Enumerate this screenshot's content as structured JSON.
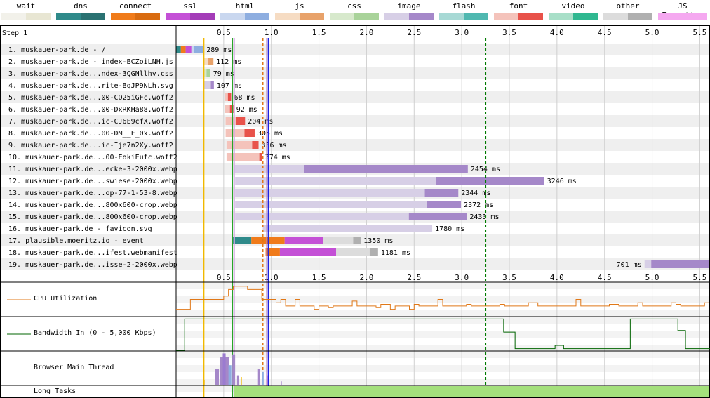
{
  "legend": [
    {
      "label": "wait",
      "c1": "#f2f1ea",
      "c2": "#e8e6d3"
    },
    {
      "label": "dns",
      "c1": "#2f8a8a",
      "c2": "#2a7272"
    },
    {
      "label": "connect",
      "c1": "#f07b1a",
      "c2": "#d96b10"
    },
    {
      "label": "ssl",
      "c1": "#c450d6",
      "c2": "#a43cb8"
    },
    {
      "label": "html",
      "c1": "#c9d7ef",
      "c2": "#8eaee0"
    },
    {
      "label": "js",
      "c1": "#f6dcc3",
      "c2": "#e8a26a"
    },
    {
      "label": "css",
      "c1": "#d7e9cc",
      "c2": "#a9d39a"
    },
    {
      "label": "image",
      "c1": "#d7cfe6",
      "c2": "#a588c9"
    },
    {
      "label": "flash",
      "c1": "#a7d9d5",
      "c2": "#4fb8b0"
    },
    {
      "label": "font",
      "c1": "#f4c3bb",
      "c2": "#e8524a"
    },
    {
      "label": "video",
      "c1": "#a8dfc8",
      "c2": "#2fb890"
    },
    {
      "label": "other",
      "c1": "#dcdcdc",
      "c2": "#b0b0b0"
    },
    {
      "label": "JS Execution",
      "c1": "#f5a8f0",
      "c2": "#f5a8f0"
    }
  ],
  "step_label": "Step_1",
  "axis": {
    "max": 5.6,
    "ticks": [
      "0.5",
      "1.0",
      "1.5",
      "2.0",
      "2.5",
      "3.0",
      "3.5",
      "4.0",
      "4.5",
      "5.0",
      "5.5"
    ]
  },
  "markers": [
    {
      "t": 0.29,
      "color": "#f0b800",
      "style": "solid",
      "w": 2
    },
    {
      "t": 0.59,
      "color": "#28a428",
      "style": "solid",
      "w": 2
    },
    {
      "t": 0.61,
      "color": "#d8a7e8",
      "style": "solid",
      "w": 2
    },
    {
      "t": 0.91,
      "color": "#e07818",
      "style": "dashed",
      "w": 2
    },
    {
      "t": 0.95,
      "color": "#c080c0",
      "style": "solid",
      "w": 1
    },
    {
      "t": 0.97,
      "color": "#2020e0",
      "style": "solid",
      "w": 2
    },
    {
      "t": 3.25,
      "color": "#007a00",
      "style": "dashed",
      "w": 2
    }
  ],
  "requests": [
    {
      "label": "1. muskauer-park.de - /",
      "timing": "289 ms",
      "type": "html",
      "start": 0.0,
      "end": 0.289,
      "phases": [
        [
          0.0,
          0.05,
          "#2f8a8a"
        ],
        [
          0.05,
          0.1,
          "#f07b1a"
        ],
        [
          0.1,
          0.16,
          "#c450d6"
        ]
      ],
      "dl": 0.8
    },
    {
      "label": "2. muskauer-park.de - index-BCZoiLNH.js",
      "timing": "112 ms",
      "type": "js",
      "start": 0.28,
      "end": 0.392,
      "phases": [],
      "dl": 0.5
    },
    {
      "label": "3. muskauer-park.de...ndex-3QGNllhv.css",
      "timing": "79 ms",
      "type": "css",
      "start": 0.28,
      "end": 0.359,
      "phases": [],
      "dl": 0.5
    },
    {
      "label": "4. muskauer-park.de...rite-BqJP9NLh.svg",
      "timing": "107 ms",
      "type": "image",
      "start": 0.29,
      "end": 0.397,
      "phases": [],
      "dl": 0.3
    },
    {
      "label": "5. muskauer-park.de...00-CO25iGFc.woff2",
      "timing": "68 ms",
      "type": "font",
      "start": 0.51,
      "end": 0.578,
      "phases": [],
      "dl": 0.5
    },
    {
      "label": "6. muskauer-park.de...00-DxRKHa88.woff2",
      "timing": "92 ms",
      "type": "font",
      "start": 0.51,
      "end": 0.602,
      "phases": [],
      "dl": 0.4
    },
    {
      "label": "7. muskauer-park.de...ic-CJ6E9cfX.woff2",
      "timing": "204 ms",
      "type": "font",
      "start": 0.52,
      "end": 0.724,
      "phases": [],
      "dl": 0.45
    },
    {
      "label": "8. muskauer-park.de...00-DM__F_0x.woff2",
      "timing": "305 ms",
      "type": "font",
      "start": 0.52,
      "end": 0.825,
      "phases": [],
      "dl": 0.35
    },
    {
      "label": "9. muskauer-park.de...ic-Ije7n2Xy.woff2",
      "timing": "336 ms",
      "type": "font",
      "start": 0.53,
      "end": 0.866,
      "phases": [],
      "dl": 0.2
    },
    {
      "label": "10. muskauer-park.de...00-EokiEufc.woff2",
      "timing": "374 ms",
      "type": "font",
      "start": 0.53,
      "end": 0.904,
      "phases": [],
      "dl": 0.08
    },
    {
      "label": "11. muskauer-park.de...ecke-3-2000x.webp",
      "timing": "2454 ms",
      "type": "image",
      "start": 0.61,
      "end": 3.064,
      "phases": [],
      "dl": 0.7
    },
    {
      "label": "12. muskauer-park.de...swiese-2000x.webp",
      "timing": "3246 ms",
      "type": "image",
      "start": 0.62,
      "end": 3.866,
      "phases": [],
      "dl": 0.35
    },
    {
      "label": "13. muskauer-park.de...op-77-1-53-8.webp",
      "timing": "2344 ms",
      "type": "image",
      "start": 0.62,
      "end": 2.964,
      "phases": [],
      "dl": 0.15
    },
    {
      "label": "14. muskauer-park.de...800x600-crop.webp",
      "timing": "2372 ms",
      "type": "image",
      "start": 0.62,
      "end": 2.992,
      "phases": [],
      "dl": 0.15
    },
    {
      "label": "15. muskauer-park.de...800x600-crop.webp",
      "timing": "2433 ms",
      "type": "image",
      "start": 0.62,
      "end": 3.053,
      "phases": [],
      "dl": 0.25
    },
    {
      "label": "16. muskauer-park.de - favicon.svg",
      "timing": "1780 ms",
      "type": "image",
      "start": 0.91,
      "end": 2.69,
      "phases": [],
      "dl": 0.0
    },
    {
      "label": "17. plausible.moeritz.io - event",
      "timing": "1350 ms",
      "type": "other",
      "start": 0.59,
      "end": 1.94,
      "phases": [
        [
          0.59,
          0.79,
          "#2f8a8a"
        ],
        [
          0.79,
          1.14,
          "#f07b1a"
        ],
        [
          1.14,
          1.54,
          "#c450d6"
        ]
      ],
      "dl": 0.2
    },
    {
      "label": "18. muskauer-park.de...ifest.webmanifest",
      "timing": "1181 ms",
      "type": "other",
      "start": 0.94,
      "end": 2.121,
      "phases": [
        [
          0.94,
          1.09,
          "#f07b1a"
        ],
        [
          1.09,
          1.68,
          "#c450d6"
        ]
      ],
      "dl": 0.2
    },
    {
      "label": "19. muskauer-park.de...isse-2-2000x.webp",
      "timing": "701 ms",
      "type": "image",
      "start": 4.92,
      "end": 5.621,
      "phases": [],
      "dl": 0.9
    }
  ],
  "graphs": {
    "cpu_label": "CPU Utilization",
    "cpu_color": "#e07818",
    "cpu": [
      0.2,
      0.2,
      0.2,
      0.5,
      0.5,
      0.5,
      0.5,
      0.5,
      0.5,
      0.5,
      0.6,
      0.8,
      0.9,
      0.9,
      0.9,
      0.8,
      0.8,
      0.8,
      0.5,
      0.5,
      0.5,
      0.4,
      0.5,
      0.3,
      0.3,
      0.5,
      0.3,
      0.3,
      0.3,
      0.2,
      0.3,
      0.3,
      0.25,
      0.3,
      0.3,
      0.3,
      0.3,
      0.45,
      0.3,
      0.3,
      0.3,
      0.3,
      0.25,
      0.35,
      0.35,
      0.2,
      0.3,
      0.3,
      0.3,
      0.2,
      0.35,
      0.3,
      0.3,
      0.3,
      0.3,
      0.5,
      0.3,
      0.3,
      0.3,
      0.3,
      0.3,
      0.35,
      0.3,
      0.3,
      0.3,
      0.3,
      0.3,
      0.3,
      0.35,
      0.3,
      0.3,
      0.3,
      0.3,
      0.3,
      0.4,
      0.4,
      0.3,
      0.3,
      0.3,
      0.3,
      0.3,
      0.3,
      0.3,
      0.3,
      0.5,
      0.3,
      0.3,
      0.3,
      0.3,
      0.3,
      0.3,
      0.35,
      0.35,
      0.3,
      0.3,
      0.3,
      0.3,
      0.4,
      0.3,
      0.3,
      0.3,
      0.3,
      0.3,
      0.3,
      0.4,
      0.35,
      0.3,
      0.3,
      0.3,
      0.3,
      0.3,
      0.4
    ],
    "bw_label": "Bandwidth In (0 - 5,000 Kbps)",
    "bw_color": "#006400",
    "bw": [
      [
        0,
        0.0
      ],
      [
        0.09,
        0.0
      ],
      [
        0.09,
        0.95
      ],
      [
        3.44,
        0.95
      ],
      [
        3.44,
        0.55
      ],
      [
        3.56,
        0.55
      ],
      [
        3.56,
        0.05
      ],
      [
        3.98,
        0.05
      ],
      [
        3.98,
        0.15
      ],
      [
        4.07,
        0.15
      ],
      [
        4.07,
        0.05
      ],
      [
        4.77,
        0.05
      ],
      [
        4.77,
        0.95
      ],
      [
        5.27,
        0.95
      ],
      [
        5.27,
        0.6
      ],
      [
        5.35,
        0.6
      ],
      [
        5.35,
        0.05
      ],
      [
        5.62,
        0.05
      ]
    ],
    "thread_label": "Browser Main Thread",
    "longtasks_label": "Long Tasks",
    "longtask_color": "#a4e07c",
    "longtask_start": 0.61
  }
}
